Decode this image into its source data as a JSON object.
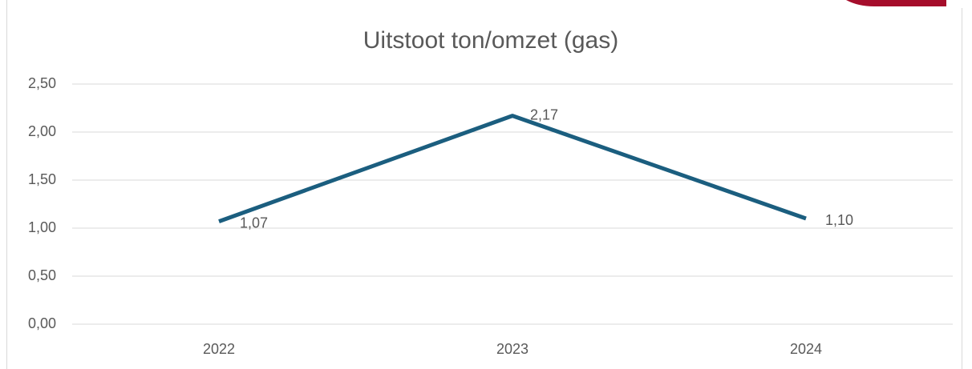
{
  "chart_data": {
    "type": "line",
    "title": "Uitstoot ton/omzet (gas)",
    "categories": [
      "2022",
      "2023",
      "2024"
    ],
    "series": [
      {
        "name": "Uitstoot ton/omzet (gas)",
        "color": "#1b5e7f",
        "values": [
          1.07,
          2.17,
          1.1
        ],
        "value_labels": [
          "1,07",
          "2,17",
          "1,10"
        ]
      }
    ],
    "ylim": [
      0,
      2.5
    ],
    "yticks": [
      {
        "value": 0,
        "label": "0,00"
      },
      {
        "value": 0.5,
        "label": "0,50"
      },
      {
        "value": 1,
        "label": "1,00"
      },
      {
        "value": 1.5,
        "label": "1,50"
      },
      {
        "value": 2,
        "label": "2,00"
      },
      {
        "value": 2.5,
        "label": "2,50"
      }
    ],
    "grid": true
  }
}
